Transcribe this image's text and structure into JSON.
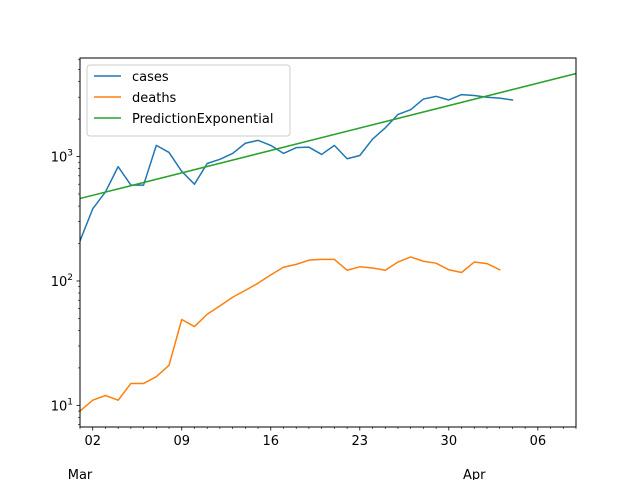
{
  "chart_data": {
    "type": "line",
    "title": "",
    "xlabel": "",
    "ylabel": "",
    "yscale": "log",
    "ylim": [
      6.7,
      6200
    ],
    "xlim": [
      "2020-03-01",
      "2020-04-09"
    ],
    "x_ticks": [
      {
        "date": "2020-03-02",
        "label": "02"
      },
      {
        "date": "2020-03-09",
        "label": "09"
      },
      {
        "date": "2020-03-16",
        "label": "16"
      },
      {
        "date": "2020-03-23",
        "label": "23"
      },
      {
        "date": "2020-03-30",
        "label": "30"
      },
      {
        "date": "2020-04-06",
        "label": "06"
      }
    ],
    "x_month_labels": [
      {
        "date": "2020-03-01",
        "label": "Mar"
      },
      {
        "date": "2020-04-01",
        "label": "Apr"
      }
    ],
    "y_ticks": [
      {
        "value": 10,
        "label": "10",
        "sup": "1"
      },
      {
        "value": 100,
        "label": "10",
        "sup": "2"
      },
      {
        "value": 1000,
        "label": "10",
        "sup": "3"
      }
    ],
    "legend": {
      "position": "top-left"
    },
    "series": [
      {
        "name": "cases",
        "color": "#1f77b4",
        "points": [
          [
            "2020-03-01",
            210
          ],
          [
            "2020-03-02",
            380
          ],
          [
            "2020-03-03",
            520
          ],
          [
            "2020-03-04",
            830
          ],
          [
            "2020-03-05",
            590
          ],
          [
            "2020-03-06",
            590
          ],
          [
            "2020-03-07",
            1230
          ],
          [
            "2020-03-08",
            1080
          ],
          [
            "2020-03-09",
            760
          ],
          [
            "2020-03-10",
            600
          ],
          [
            "2020-03-11",
            880
          ],
          [
            "2020-03-12",
            950
          ],
          [
            "2020-03-13",
            1060
          ],
          [
            "2020-03-14",
            1280
          ],
          [
            "2020-03-15",
            1350
          ],
          [
            "2020-03-16",
            1230
          ],
          [
            "2020-03-17",
            1060
          ],
          [
            "2020-03-18",
            1180
          ],
          [
            "2020-03-19",
            1190
          ],
          [
            "2020-03-20",
            1040
          ],
          [
            "2020-03-21",
            1230
          ],
          [
            "2020-03-22",
            960
          ],
          [
            "2020-03-23",
            1020
          ],
          [
            "2020-03-24",
            1380
          ],
          [
            "2020-03-25",
            1700
          ],
          [
            "2020-03-26",
            2180
          ],
          [
            "2020-03-27",
            2380
          ],
          [
            "2020-03-28",
            2900
          ],
          [
            "2020-03-29",
            3050
          ],
          [
            "2020-03-30",
            2850
          ],
          [
            "2020-03-31",
            3150
          ],
          [
            "2020-04-01",
            3100
          ],
          [
            "2020-04-02",
            3000
          ],
          [
            "2020-04-03",
            2950
          ],
          [
            "2020-04-04",
            2850
          ]
        ]
      },
      {
        "name": "deaths",
        "color": "#ff7f0e",
        "points": [
          [
            "2020-03-01",
            9
          ],
          [
            "2020-03-02",
            11
          ],
          [
            "2020-03-03",
            12
          ],
          [
            "2020-03-04",
            11
          ],
          [
            "2020-03-05",
            15
          ],
          [
            "2020-03-06",
            15
          ],
          [
            "2020-03-07",
            17
          ],
          [
            "2020-03-08",
            21
          ],
          [
            "2020-03-09",
            49
          ],
          [
            "2020-03-10",
            43
          ],
          [
            "2020-03-11",
            54
          ],
          [
            "2020-03-12",
            63
          ],
          [
            "2020-03-13",
            74
          ],
          [
            "2020-03-14",
            84
          ],
          [
            "2020-03-15",
            96
          ],
          [
            "2020-03-16",
            112
          ],
          [
            "2020-03-17",
            129
          ],
          [
            "2020-03-18",
            136
          ],
          [
            "2020-03-19",
            147
          ],
          [
            "2020-03-20",
            149
          ],
          [
            "2020-03-21",
            149
          ],
          [
            "2020-03-22",
            122
          ],
          [
            "2020-03-23",
            130
          ],
          [
            "2020-03-24",
            127
          ],
          [
            "2020-03-25",
            122
          ],
          [
            "2020-03-26",
            142
          ],
          [
            "2020-03-27",
            156
          ],
          [
            "2020-03-28",
            144
          ],
          [
            "2020-03-29",
            139
          ],
          [
            "2020-03-30",
            123
          ],
          [
            "2020-03-31",
            117
          ],
          [
            "2020-04-01",
            142
          ],
          [
            "2020-04-02",
            138
          ],
          [
            "2020-04-03",
            123
          ]
        ]
      },
      {
        "name": "PredictionExponential",
        "color": "#2ca02c",
        "points": [
          [
            "2020-03-01",
            460
          ],
          [
            "2020-04-09",
            4650
          ]
        ]
      }
    ]
  }
}
